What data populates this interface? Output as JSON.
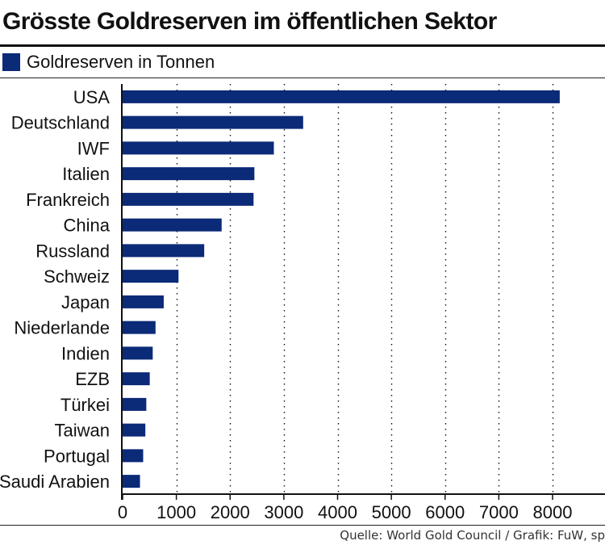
{
  "header": {
    "title": "Grösste Goldreserven im öffentlichen Sektor"
  },
  "legend": {
    "label": "Goldreserven in Tonnen"
  },
  "footer": {
    "source": "Quelle: World Gold Council / Grafik: FuW, sp"
  },
  "colors": {
    "bar": "#0b2a78",
    "grid": "#111111",
    "text": "#111111"
  },
  "chart_data": {
    "type": "bar",
    "orientation": "horizontal",
    "categories": [
      "USA",
      "Deutschland",
      "IWF",
      "Italien",
      "Frankreich",
      "China",
      "Russland",
      "Schweiz",
      "Japan",
      "Niederlande",
      "Indien",
      "EZB",
      "Türkei",
      "Taiwan",
      "Portugal",
      "Saudi Arabien"
    ],
    "series": [
      {
        "name": "Goldreserven in Tonnen",
        "values": [
          8133.5,
          3359.1,
          2814.0,
          2451.8,
          2436.4,
          1842.6,
          1518.3,
          1040.0,
          765.2,
          612.5,
          560.3,
          504.8,
          440.6,
          422.7,
          382.5,
          323.1
        ]
      }
    ],
    "title": "Grösste Goldreserven im öffentlichen Sektor",
    "xlim": [
      0,
      8000
    ],
    "xticks": [
      0,
      1000,
      2000,
      3000,
      4000,
      5000,
      6000,
      7000,
      8000
    ],
    "grid": "vertical dotted",
    "legend_position": "top-left"
  }
}
